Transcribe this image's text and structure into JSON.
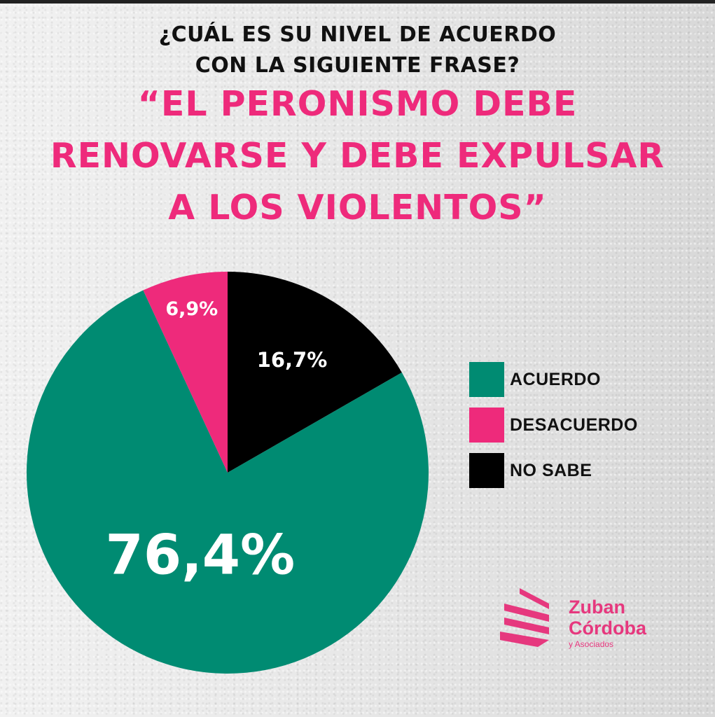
{
  "header": {
    "question_line1": "¿CUÁL ES SU NIVEL DE ACUERDO",
    "question_line2": "CON LA SIGUIENTE FRASE?",
    "quote_line1": "“EL PERONISMO DEBE",
    "quote_line2": "RENOVARSE Y DEBE EXPULSAR",
    "quote_line3": "A LOS VIOLENTOS”"
  },
  "chart_data": {
    "type": "pie",
    "series": [
      {
        "name": "ACUERDO",
        "value": 76.4,
        "label": "76,4%",
        "color": "#008b72"
      },
      {
        "name": "DESACUERDO",
        "value": 6.9,
        "label": "6,9%",
        "color": "#ee2a7b"
      },
      {
        "name": "NO SABE",
        "value": 16.7,
        "label": "16,7%",
        "color": "#000000"
      }
    ],
    "legend_position": "right"
  },
  "legend": {
    "items": [
      {
        "label": "ACUERDO",
        "color": "#008b72"
      },
      {
        "label": "DESACUERDO",
        "color": "#ee2a7b"
      },
      {
        "label": "NO SABE",
        "color": "#000000"
      }
    ]
  },
  "logo": {
    "line1": "Zuban",
    "line2": "Córdoba",
    "tagline": "y Asociados",
    "color": "#e6387e"
  }
}
